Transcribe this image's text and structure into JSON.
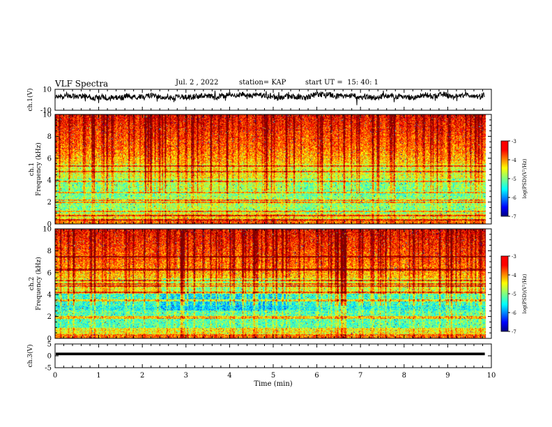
{
  "header": {
    "title": "VLF Spectra",
    "date": "Jul. 2 , 2022",
    "station": "station= KAP",
    "start": "start UT =  15: 40: 1"
  },
  "chart_data": {
    "type": "heatmap",
    "xlabel": "Time (min)",
    "xlim": [
      0,
      10
    ],
    "x_ticks": [
      "0",
      "1",
      "2",
      "3",
      "4",
      "5",
      "6",
      "7",
      "8",
      "9",
      "10"
    ],
    "data_end_min": 9.85,
    "panels": [
      {
        "id": "ch1-wave",
        "type": "line",
        "ylabel": "ch.1(V)",
        "ylim": [
          -10,
          10
        ],
        "y_ticks": [
          "10",
          "-10"
        ],
        "typical_level_v": 3,
        "typical_amplitude_v": 4
      },
      {
        "id": "ch1-spectrogram",
        "type": "heatmap",
        "ylabel": "ch.1\nFrequency (kHz)",
        "ylim": [
          0,
          10
        ],
        "y_ticks": [
          "0",
          "2",
          "4",
          "6",
          "8",
          "10"
        ],
        "colorbar": {
          "label": "log(PSD)(V²/Hz)",
          "range": [
            -7,
            -3
          ],
          "ticks": [
            "-3",
            "-4",
            "-5",
            "-6",
            "-7"
          ]
        },
        "narrowband_lines_khz": [
          0.4,
          0.8,
          1.2,
          2.0,
          2.2,
          2.9,
          3.9,
          4.8,
          5.3
        ],
        "regime_change_min": [
          2.5,
          5.35
        ]
      },
      {
        "id": "ch2-spectrogram",
        "type": "heatmap",
        "ylabel": "ch.2\nFrequency (kHz)",
        "ylim": [
          0,
          10
        ],
        "y_ticks": [
          "0",
          "2",
          "4",
          "6",
          "8",
          "10"
        ],
        "colorbar": {
          "label": "log(PSD)(V²/Hz)",
          "range": [
            -7,
            -3
          ],
          "ticks": [
            "-3",
            "-4",
            "-5",
            "-6",
            "-7"
          ]
        },
        "narrowband_lines_khz": [
          1.9,
          2.0,
          3.5,
          4.2,
          4.8,
          5.0,
          5.3,
          6.3,
          7.5
        ],
        "regime_change_min": [
          0.6,
          2.45,
          5.35
        ]
      },
      {
        "id": "ch3-wave",
        "type": "line",
        "ylabel": "ch.3(V)",
        "ylim": [
          -5,
          5
        ],
        "y_ticks": [
          "5",
          "0",
          "-5"
        ],
        "level_v": 0.8,
        "band_halfwidth_v": 0.55
      }
    ]
  },
  "colors": {
    "jet": [
      "#000080",
      "#0000ff",
      "#0080ff",
      "#00ffff",
      "#80ff80",
      "#ffff00",
      "#ff8000",
      "#ff0000",
      "#800000"
    ]
  }
}
